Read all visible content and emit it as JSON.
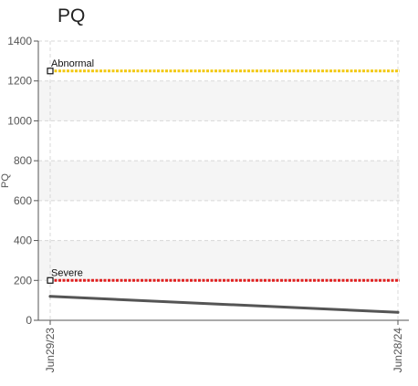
{
  "chart_data": {
    "type": "line",
    "title": "PQ",
    "ylabel": "PQ",
    "xlabel": "",
    "ylim": [
      0,
      1400
    ],
    "y_ticks": [
      0,
      200,
      400,
      600,
      800,
      1000,
      1200,
      1400
    ],
    "x_ticks": [
      "Jun29/23",
      "Jun28/24"
    ],
    "grid": true,
    "series": [
      {
        "values": [
          120,
          40
        ],
        "color": "#555555"
      }
    ],
    "reference_lines": [
      {
        "label": "Abnormal",
        "value": 1250,
        "color": "#f2c811"
      },
      {
        "label": "Severe",
        "value": 200,
        "color": "#e02020"
      }
    ]
  }
}
